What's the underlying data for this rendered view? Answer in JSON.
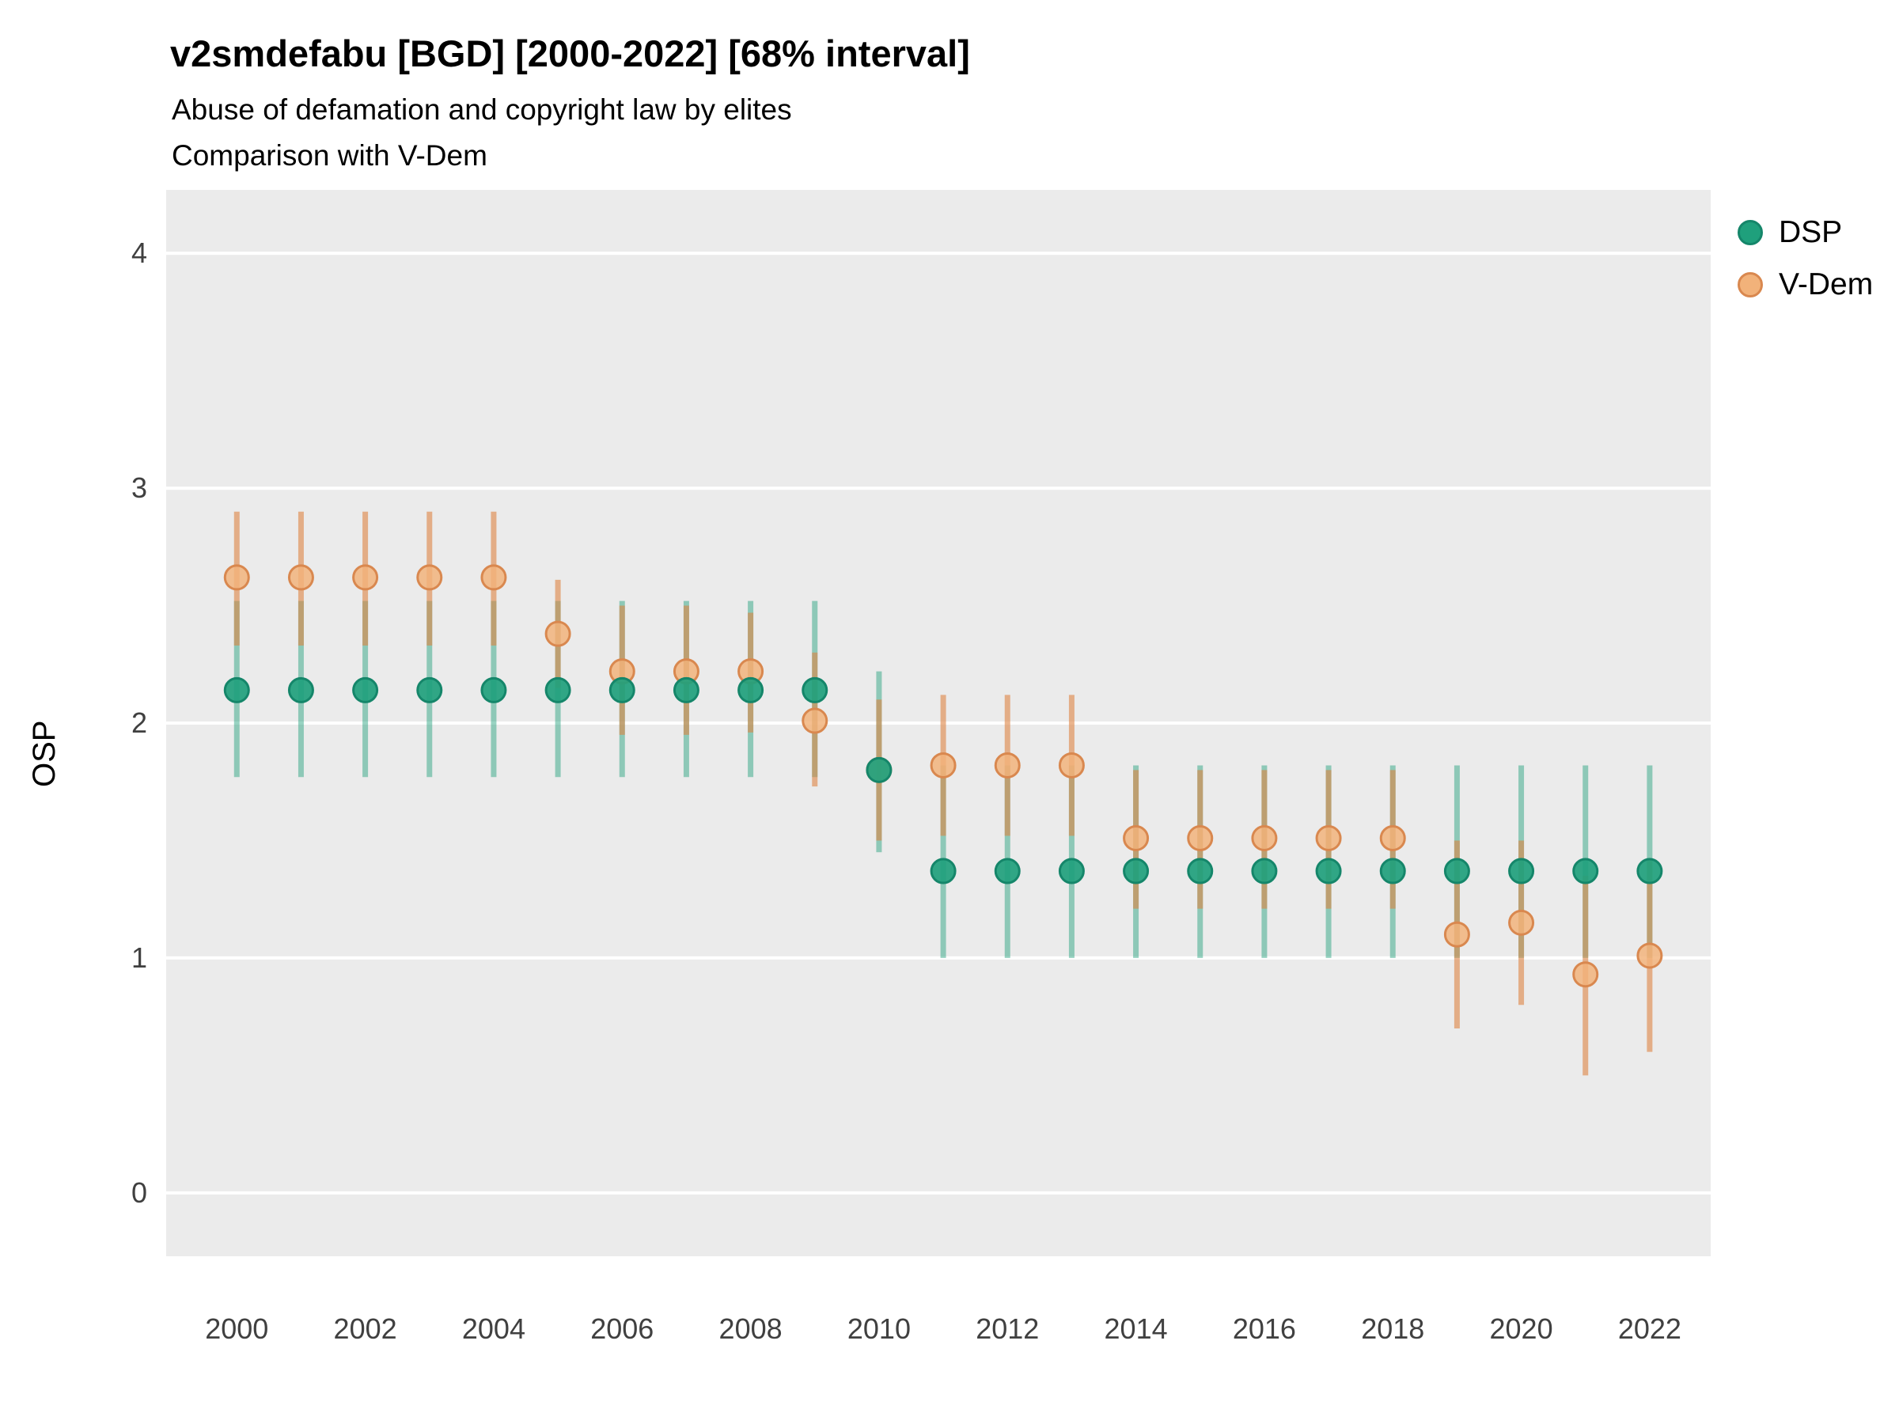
{
  "title": "v2smdefabu [BGD] [2000-2022] [68% interval]",
  "subtitle": "Abuse of defamation and copyright law by elites",
  "subtitle2": "Comparison with V-Dem",
  "ylabel": "OSP",
  "legend": [
    {
      "label": "DSP",
      "color": "#1fa07c",
      "border": "#15866a"
    },
    {
      "label": "V-Dem",
      "color": "#f2b27a",
      "border": "#d9884f"
    }
  ],
  "chart_data": {
    "type": "scatter",
    "title": "v2smdefabu [BGD] [2000-2022] [68% interval]",
    "subtitle": "Abuse of defamation and copyright law by elites",
    "subtitle2": "Comparison with V-Dem",
    "xlabel": "",
    "ylabel": "OSP",
    "x": [
      2000,
      2001,
      2002,
      2003,
      2004,
      2005,
      2006,
      2007,
      2008,
      2009,
      2010,
      2011,
      2012,
      2013,
      2014,
      2015,
      2016,
      2017,
      2018,
      2019,
      2020,
      2021,
      2022
    ],
    "series": [
      {
        "name": "DSP",
        "point_fill": "#1fa07c",
        "point_stroke": "#15866a",
        "bar_color": "rgba(27,158,119,0.45)",
        "mean": [
          2.14,
          2.14,
          2.14,
          2.14,
          2.14,
          2.14,
          2.14,
          2.14,
          2.14,
          2.14,
          1.8,
          1.37,
          1.37,
          1.37,
          1.37,
          1.37,
          1.37,
          1.37,
          1.37,
          1.37,
          1.37,
          1.37,
          1.37
        ],
        "lo": [
          1.77,
          1.77,
          1.77,
          1.77,
          1.77,
          1.77,
          1.77,
          1.77,
          1.77,
          1.77,
          1.45,
          1.0,
          1.0,
          1.0,
          1.0,
          1.0,
          1.0,
          1.0,
          1.0,
          1.0,
          1.0,
          1.0,
          1.0
        ],
        "hi": [
          2.52,
          2.52,
          2.52,
          2.52,
          2.52,
          2.52,
          2.52,
          2.52,
          2.52,
          2.52,
          2.22,
          1.82,
          1.82,
          1.82,
          1.82,
          1.82,
          1.82,
          1.82,
          1.82,
          1.82,
          1.82,
          1.82,
          1.82
        ]
      },
      {
        "name": "V-Dem",
        "point_fill": "rgba(242,178,122,0.9)",
        "point_stroke": "#d9884f",
        "bar_color": "rgba(221,132,66,0.6)",
        "mean": [
          2.62,
          2.62,
          2.62,
          2.62,
          2.62,
          2.38,
          2.22,
          2.22,
          2.22,
          2.01,
          1.8,
          1.82,
          1.82,
          1.82,
          1.51,
          1.51,
          1.51,
          1.51,
          1.51,
          1.1,
          1.15,
          0.93,
          1.01
        ],
        "lo": [
          2.33,
          2.33,
          2.33,
          2.33,
          2.33,
          2.15,
          1.95,
          1.95,
          1.96,
          1.73,
          1.5,
          1.52,
          1.52,
          1.52,
          1.21,
          1.21,
          1.21,
          1.21,
          1.21,
          0.7,
          0.8,
          0.5,
          0.6
        ],
        "hi": [
          2.9,
          2.9,
          2.9,
          2.9,
          2.9,
          2.61,
          2.5,
          2.5,
          2.47,
          2.3,
          2.1,
          2.12,
          2.12,
          2.12,
          1.8,
          1.8,
          1.8,
          1.8,
          1.8,
          1.5,
          1.5,
          1.35,
          1.42
        ]
      }
    ],
    "interval": "68%",
    "yticks": [
      0,
      1,
      2,
      3,
      4
    ],
    "xticks": [
      2000,
      2002,
      2004,
      2006,
      2008,
      2010,
      2012,
      2014,
      2016,
      2018,
      2020,
      2022
    ],
    "ylim": [
      -0.27,
      4.27
    ],
    "xlim": [
      1998.9,
      2022.95
    ],
    "legend_position": "right",
    "grid": "major-horizontal",
    "panel_bg": "#ebebeb",
    "grid_color": "#ffffff",
    "tick_color": "#404040"
  }
}
